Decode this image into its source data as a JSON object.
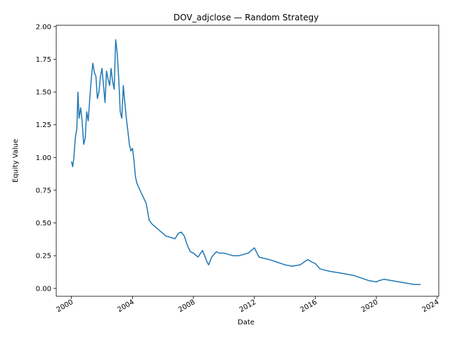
{
  "chart_data": {
    "type": "line",
    "title": "DOV_adjclose — Random Strategy",
    "xlabel": "Date",
    "ylabel": "Equity Value",
    "xlim": [
      1999.0,
      2024.1
    ],
    "ylim": [
      -0.06,
      2.01
    ],
    "grid": false,
    "x_ticks": [
      2000,
      2004,
      2008,
      2012,
      2016,
      2020,
      2024
    ],
    "y_ticks": [
      0.0,
      0.25,
      0.5,
      0.75,
      1.0,
      1.25,
      1.5,
      1.75,
      2.0
    ],
    "series": [
      {
        "color": "#1f77b4",
        "x": [
          2000.0,
          2000.08,
          2000.15,
          2000.25,
          2000.35,
          2000.42,
          2000.5,
          2000.6,
          2000.7,
          2000.8,
          2000.9,
          2001.0,
          2001.1,
          2001.2,
          2001.3,
          2001.4,
          2001.5,
          2001.6,
          2001.7,
          2001.8,
          2001.9,
          2002.0,
          2002.1,
          2002.2,
          2002.3,
          2002.4,
          2002.5,
          2002.6,
          2002.7,
          2002.8,
          2002.9,
          2003.0,
          2003.1,
          2003.2,
          2003.3,
          2003.4,
          2003.5,
          2003.6,
          2003.7,
          2003.8,
          2003.9,
          2004.0,
          2004.1,
          2004.2,
          2004.3,
          2004.5,
          2004.7,
          2004.9,
          2005.1,
          2005.3,
          2005.5,
          2005.7,
          2005.9,
          2006.2,
          2006.5,
          2006.8,
          2007.0,
          2007.2,
          2007.4,
          2007.6,
          2007.8,
          2008.0,
          2008.3,
          2008.6,
          2008.9,
          2009.0,
          2009.2,
          2009.5,
          2009.7,
          2010.0,
          2010.3,
          2010.6,
          2011.0,
          2011.3,
          2011.6,
          2011.9,
          2012.0,
          2012.3,
          2012.6,
          2013.0,
          2013.5,
          2014.0,
          2014.5,
          2015.0,
          2015.5,
          2015.8,
          2016.0,
          2016.3,
          2016.6,
          2017.0,
          2017.5,
          2018.0,
          2018.5,
          2019.0,
          2019.5,
          2020.0,
          2020.2,
          2020.5,
          2021.0,
          2021.5,
          2022.0,
          2022.5,
          2022.9
        ],
        "y": [
          0.97,
          0.93,
          0.99,
          1.15,
          1.22,
          1.5,
          1.3,
          1.38,
          1.28,
          1.1,
          1.15,
          1.35,
          1.28,
          1.45,
          1.6,
          1.72,
          1.65,
          1.62,
          1.45,
          1.5,
          1.62,
          1.68,
          1.55,
          1.42,
          1.66,
          1.6,
          1.55,
          1.68,
          1.58,
          1.52,
          1.9,
          1.8,
          1.6,
          1.35,
          1.3,
          1.55,
          1.42,
          1.3,
          1.2,
          1.1,
          1.05,
          1.07,
          0.98,
          0.85,
          0.8,
          0.75,
          0.7,
          0.65,
          0.52,
          0.49,
          0.47,
          0.45,
          0.43,
          0.4,
          0.39,
          0.38,
          0.42,
          0.43,
          0.4,
          0.33,
          0.28,
          0.27,
          0.24,
          0.29,
          0.2,
          0.18,
          0.24,
          0.28,
          0.27,
          0.27,
          0.26,
          0.25,
          0.25,
          0.26,
          0.27,
          0.3,
          0.31,
          0.24,
          0.23,
          0.22,
          0.2,
          0.18,
          0.17,
          0.18,
          0.22,
          0.2,
          0.19,
          0.15,
          0.14,
          0.13,
          0.12,
          0.11,
          0.1,
          0.08,
          0.06,
          0.05,
          0.06,
          0.07,
          0.06,
          0.05,
          0.04,
          0.03,
          0.03
        ]
      }
    ]
  }
}
